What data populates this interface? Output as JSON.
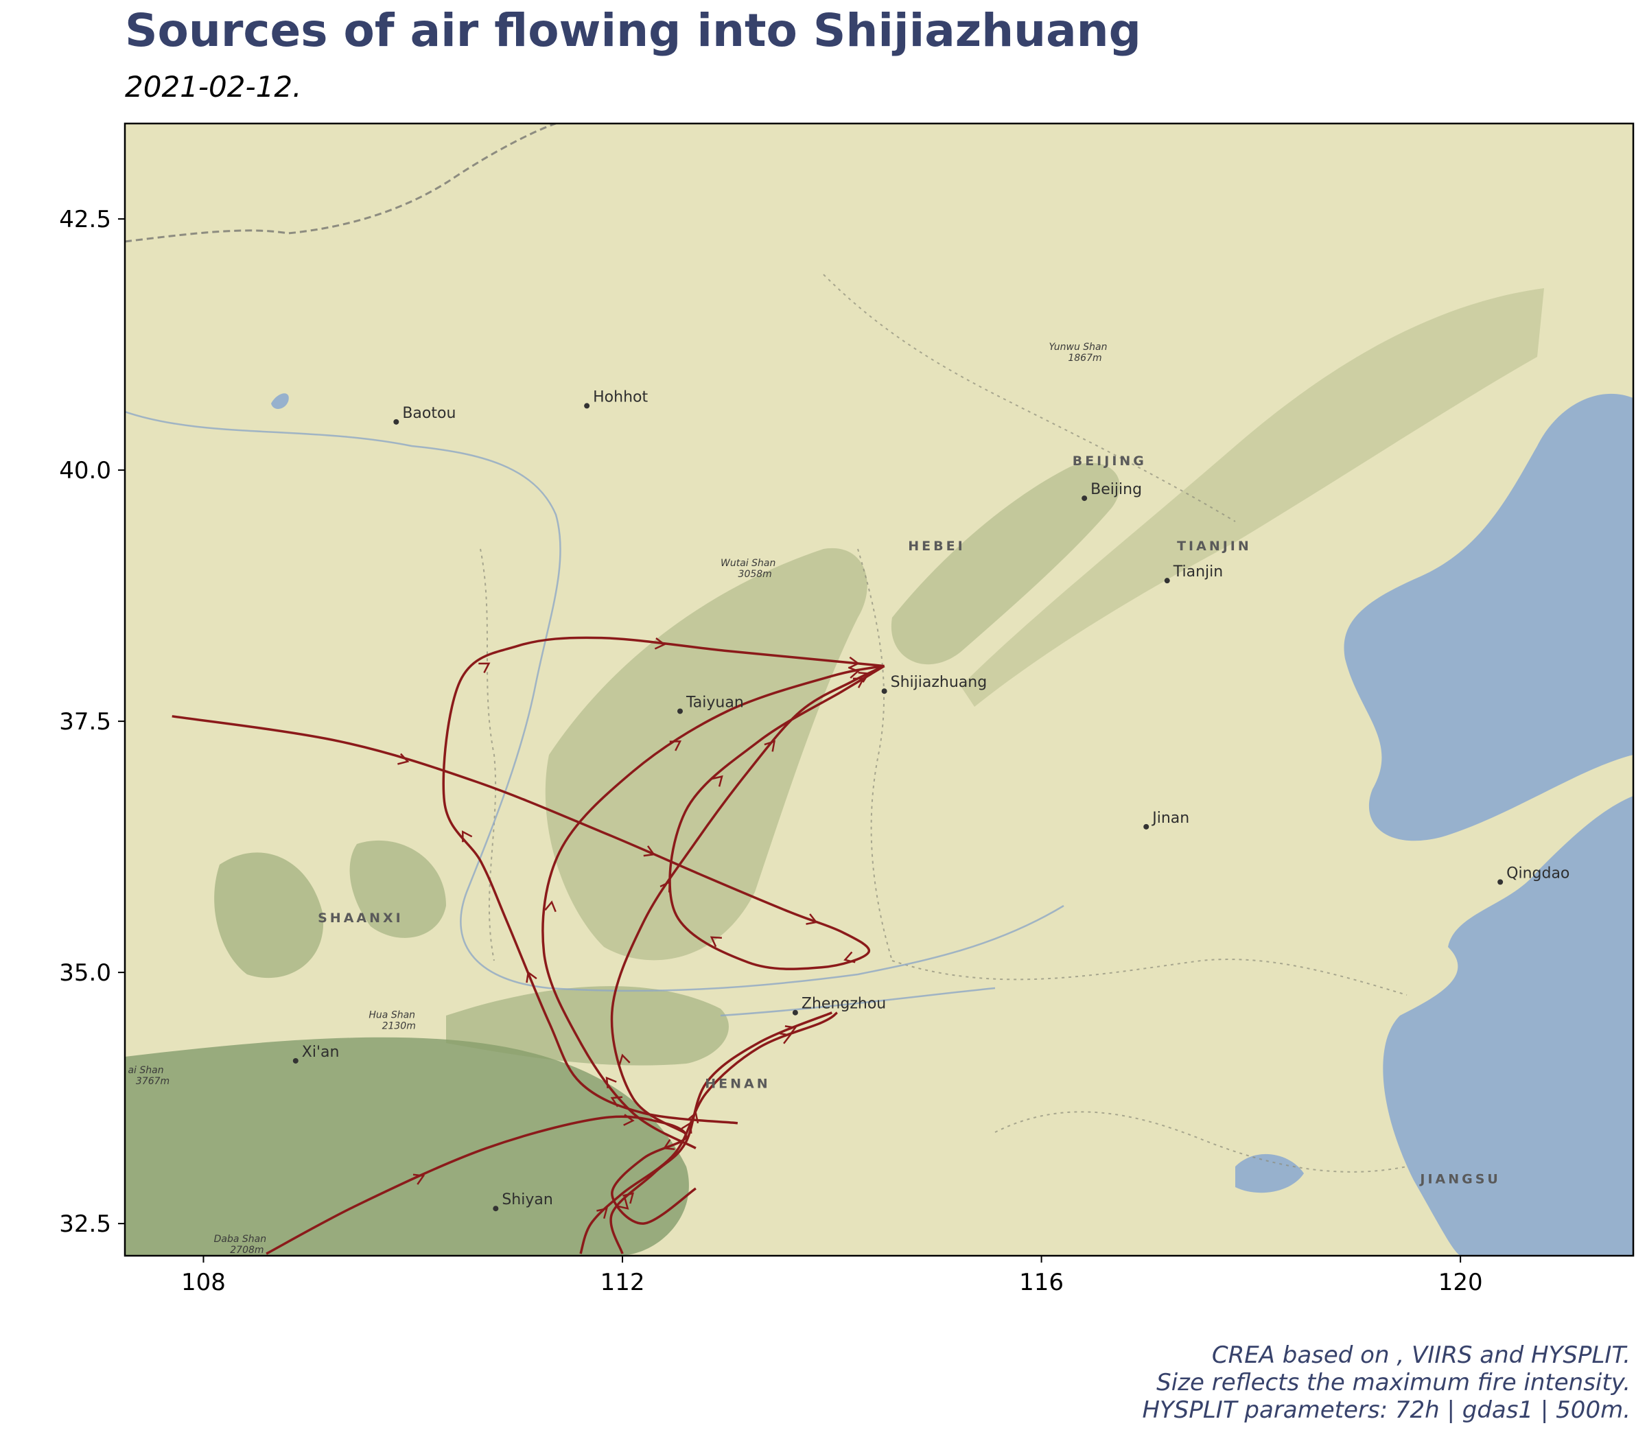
{
  "title": "Sources of air flowing into Shijiazhuang",
  "subtitle": "2021-02-12.",
  "caption": [
    "CREA based on , VIIRS and HYSPLIT.",
    "Size reflects the maximum fire intensity.",
    "HYSPLIT parameters: 72h | gdas1 | 500m."
  ],
  "axes": {
    "x_ticks": [
      108,
      112,
      116,
      120
    ],
    "x_tick_labels": [
      "108",
      "112",
      "116",
      "120"
    ],
    "y_ticks": [
      32.5,
      35.0,
      37.5,
      40.0,
      42.5
    ],
    "y_tick_labels": [
      "32.5",
      "35.0",
      "37.5",
      "40.0",
      "42.5"
    ],
    "xlim": [
      107.25,
      121.65
    ],
    "ylim": [
      32.18,
      43.45
    ]
  },
  "map": {
    "basemap": "terrain",
    "colors": {
      "land": "#e6e3bc",
      "sea": "#97b1cd",
      "mountain": "#6f8d5a",
      "trajectory": "#8b1a1a",
      "title": "#37426b"
    },
    "cities": [
      {
        "name": "Baotou",
        "lon": 109.84,
        "lat": 40.48
      },
      {
        "name": "Hohhot",
        "lon": 111.66,
        "lat": 40.64
      },
      {
        "name": "Beijing",
        "lon": 116.41,
        "lat": 39.72
      },
      {
        "name": "Tianjin",
        "lon": 117.2,
        "lat": 38.9
      },
      {
        "name": "Shijiazhuang",
        "lon": 114.5,
        "lat": 37.8
      },
      {
        "name": "Taiyuan",
        "lon": 112.55,
        "lat": 37.6
      },
      {
        "name": "Jinan",
        "lon": 117.0,
        "lat": 36.45
      },
      {
        "name": "Qingdao",
        "lon": 120.38,
        "lat": 35.9
      },
      {
        "name": "Zhengzhou",
        "lon": 113.65,
        "lat": 34.6
      },
      {
        "name": "Xi'an",
        "lon": 108.88,
        "lat": 34.12
      },
      {
        "name": "Shiyan",
        "lon": 110.79,
        "lat": 32.65
      }
    ],
    "provinces": [
      {
        "name": "BEIJING",
        "lon": 116.65,
        "lat": 40.05
      },
      {
        "name": "HEBEI",
        "lon": 115.0,
        "lat": 39.2
      },
      {
        "name": "TIANJIN",
        "lon": 117.65,
        "lat": 39.2
      },
      {
        "name": "SHAANXI",
        "lon": 109.5,
        "lat": 35.5
      },
      {
        "name": "HENAN",
        "lon": 113.1,
        "lat": 33.85
      },
      {
        "name": "JIANGSU",
        "lon": 120.0,
        "lat": 32.9
      }
    ],
    "peaks": [
      {
        "name": "Yunwu Shan",
        "elev": "1867m",
        "lon": 116.35,
        "lat": 41.1
      },
      {
        "name": "Wutai Shan",
        "elev": "3058m",
        "lon": 113.2,
        "lat": 38.95
      },
      {
        "name": "Hua Shan",
        "elev": "2130m",
        "lon": 109.8,
        "lat": 34.45
      },
      {
        "name": "Daba Shan",
        "elev": "2708m",
        "lon": 108.35,
        "lat": 32.22
      },
      {
        "name": "ai Shan",
        "elev": "3767m",
        "lon": 107.45,
        "lat": 33.9
      }
    ]
  },
  "trajectories": [
    {
      "points": [
        [
          107.7,
          37.55
        ],
        [
          109.3,
          37.3
        ],
        [
          110.6,
          36.9
        ],
        [
          111.8,
          36.4
        ],
        [
          112.8,
          35.95
        ],
        [
          113.6,
          35.6
        ],
        [
          114.1,
          35.4
        ],
        [
          114.35,
          35.2
        ],
        [
          113.9,
          35.05
        ],
        [
          113.2,
          35.1
        ],
        [
          112.5,
          35.6
        ],
        [
          112.6,
          36.6
        ],
        [
          113.3,
          37.3
        ],
        [
          114.1,
          37.8
        ],
        [
          114.5,
          38.05
        ]
      ]
    },
    {
      "points": [
        [
          108.6,
          32.2
        ],
        [
          109.5,
          32.7
        ],
        [
          110.7,
          33.25
        ],
        [
          111.8,
          33.55
        ],
        [
          112.4,
          33.5
        ],
        [
          112.6,
          33.35
        ],
        [
          112.2,
          33.15
        ],
        [
          111.9,
          32.8
        ],
        [
          112.2,
          32.5
        ],
        [
          112.7,
          32.85
        ]
      ]
    },
    {
      "points": [
        [
          111.6,
          32.2
        ],
        [
          111.7,
          32.5
        ],
        [
          112.0,
          32.8
        ],
        [
          112.5,
          33.2
        ],
        [
          112.8,
          33.8
        ],
        [
          113.3,
          34.25
        ],
        [
          113.9,
          34.5
        ],
        [
          114.05,
          34.6
        ]
      ]
    },
    {
      "points": [
        [
          112.0,
          32.2
        ],
        [
          111.9,
          32.6
        ],
        [
          112.3,
          33.0
        ],
        [
          112.6,
          33.3
        ],
        [
          112.8,
          33.9
        ],
        [
          113.3,
          34.3
        ],
        [
          114.0,
          34.6
        ]
      ]
    },
    {
      "points": [
        [
          113.1,
          33.5
        ],
        [
          112.2,
          33.6
        ],
        [
          111.6,
          33.9
        ],
        [
          111.3,
          34.5
        ],
        [
          110.9,
          35.5
        ],
        [
          110.65,
          36.1
        ],
        [
          110.3,
          36.7
        ],
        [
          110.45,
          37.9
        ],
        [
          111.0,
          38.25
        ],
        [
          111.8,
          38.33
        ],
        [
          113.0,
          38.2
        ],
        [
          114.0,
          38.1
        ],
        [
          114.5,
          38.05
        ]
      ]
    },
    {
      "points": [
        [
          112.7,
          33.25
        ],
        [
          112.1,
          33.6
        ],
        [
          111.6,
          34.3
        ],
        [
          111.25,
          35.2
        ],
        [
          111.4,
          36.2
        ],
        [
          112.1,
          37.0
        ],
        [
          113.0,
          37.6
        ],
        [
          114.0,
          37.95
        ],
        [
          114.5,
          38.05
        ]
      ]
    },
    {
      "points": [
        [
          112.6,
          33.4
        ],
        [
          112.1,
          33.75
        ],
        [
          111.9,
          34.6
        ],
        [
          112.2,
          35.5
        ],
        [
          112.7,
          36.3
        ],
        [
          113.2,
          37.0
        ],
        [
          113.7,
          37.6
        ],
        [
          114.2,
          37.9
        ],
        [
          114.5,
          38.05
        ]
      ]
    }
  ]
}
